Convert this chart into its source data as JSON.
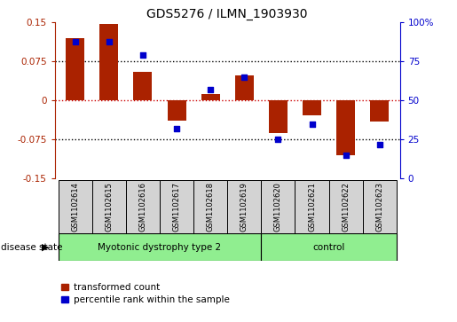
{
  "title": "GDS5276 / ILMN_1903930",
  "samples": [
    "GSM1102614",
    "GSM1102615",
    "GSM1102616",
    "GSM1102617",
    "GSM1102618",
    "GSM1102619",
    "GSM1102620",
    "GSM1102621",
    "GSM1102622",
    "GSM1102623"
  ],
  "red_values": [
    0.12,
    0.148,
    0.055,
    -0.038,
    0.012,
    0.048,
    -0.062,
    -0.028,
    -0.105,
    -0.04
  ],
  "blue_values": [
    88,
    88,
    79,
    32,
    57,
    65,
    25,
    35,
    15,
    22
  ],
  "group1_label": "Myotonic dystrophy type 2",
  "group1_count": 6,
  "group2_label": "control",
  "group2_count": 4,
  "group_color": "#90EE90",
  "ylim": [
    -0.15,
    0.15
  ],
  "y2lim": [
    0,
    100
  ],
  "yticks_left": [
    -0.15,
    -0.075,
    0,
    0.075,
    0.15
  ],
  "yticks_right": [
    0,
    25,
    50,
    75,
    100
  ],
  "bar_color": "#AA2200",
  "dot_color": "#0000CC",
  "hline_color": "#CC0000",
  "box_color": "#D3D3D3",
  "legend_red_label": "transformed count",
  "legend_blue_label": "percentile rank within the sample",
  "disease_state_label": "disease state"
}
